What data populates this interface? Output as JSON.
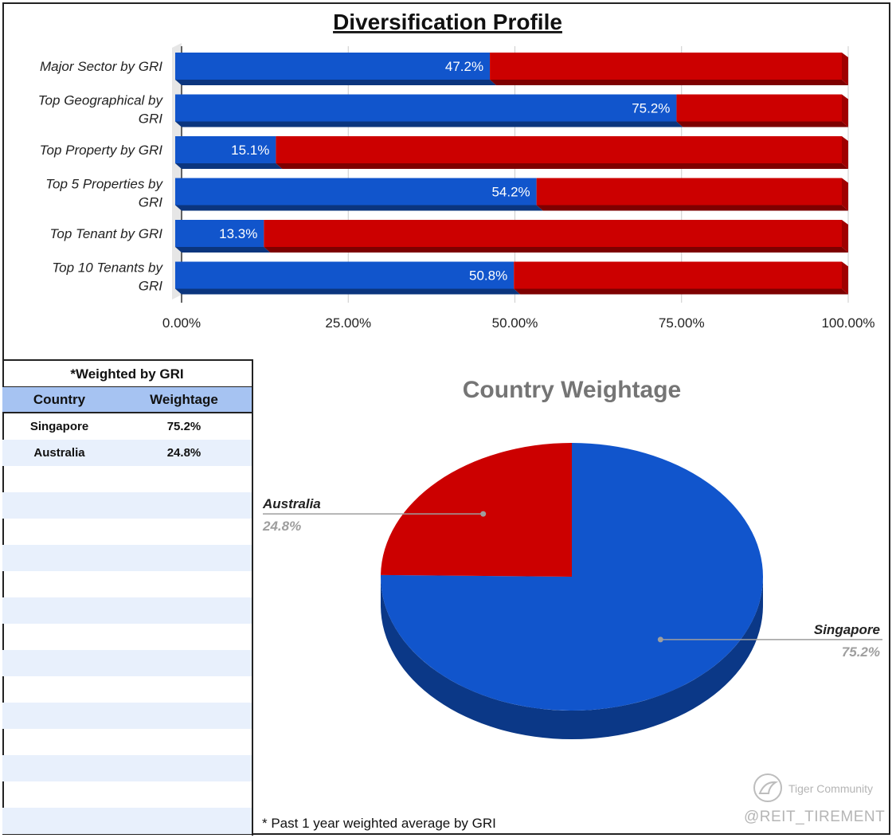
{
  "chart_data": [
    {
      "type": "bar",
      "orientation": "horizontal",
      "stacked": true,
      "title": "Diversification Profile",
      "categories": [
        "Major Sector by GRI",
        "Top Geographical by GRI",
        "Top Property by GRI",
        "Top 5 Properties by GRI",
        "Top Tenant by GRI",
        "Top 10 Tenants by GRI"
      ],
      "category_lines": [
        [
          "Major Sector by GRI"
        ],
        [
          "Top Geographical by",
          "GRI"
        ],
        [
          "Top Property by GRI"
        ],
        [
          "Top 5 Properties by",
          "GRI"
        ],
        [
          "Top Tenant by GRI"
        ],
        [
          "Top 10 Tenants by",
          "GRI"
        ]
      ],
      "series": [
        {
          "values": [
            47.2,
            75.2,
            15.1,
            54.2,
            13.3,
            50.8
          ],
          "color": "#1155cc"
        },
        {
          "values": [
            52.8,
            24.8,
            84.9,
            45.8,
            86.7,
            49.2
          ],
          "color": "#cc0000"
        }
      ],
      "data_labels": [
        "47.2%",
        "75.2%",
        "15.1%",
        "54.2%",
        "13.3%",
        "50.8%"
      ],
      "xlim": [
        0,
        100
      ],
      "x_ticks": [
        "0.00%",
        "25.00%",
        "50.00%",
        "75.00%",
        "100.00%"
      ],
      "gridlines": true
    },
    {
      "type": "pie",
      "title": "Country Weightage",
      "slices": [
        {
          "label": "Singapore",
          "value": 75.2,
          "value_label": "75.2%",
          "color": "#1155cc"
        },
        {
          "label": "Australia",
          "value": 24.8,
          "value_label": "24.8%",
          "color": "#cc0000"
        }
      ]
    }
  ],
  "table": {
    "title": "*Weighted by GRI",
    "headers": [
      "Country",
      "Weightage"
    ],
    "rows": [
      [
        "Singapore",
        "75.2%"
      ],
      [
        "Australia",
        "24.8%"
      ],
      [
        "",
        ""
      ],
      [
        "",
        ""
      ],
      [
        "",
        ""
      ],
      [
        "",
        ""
      ],
      [
        "",
        ""
      ],
      [
        "",
        ""
      ],
      [
        "",
        ""
      ],
      [
        "",
        ""
      ],
      [
        "",
        ""
      ],
      [
        "",
        ""
      ],
      [
        "",
        ""
      ],
      [
        "",
        ""
      ],
      [
        "",
        ""
      ],
      [
        "",
        ""
      ]
    ]
  },
  "footnote": "* Past 1 year weighted average by GRI",
  "watermark": {
    "community": "Tiger Community",
    "handle": "@REIT_TIREMENT"
  }
}
